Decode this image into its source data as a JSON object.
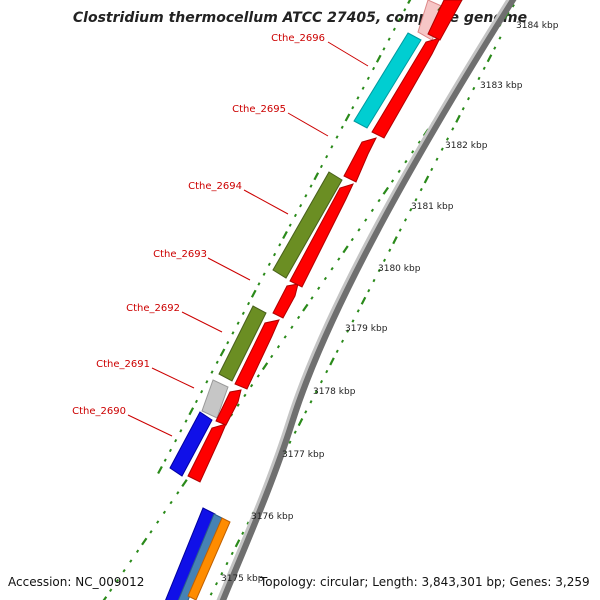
{
  "title": "Clostridium thermocellum ATCC 27405, complete genome",
  "accession": "Accession: NC_009012",
  "topology": "Topology: circular; Length: 3,843,301 bp; Genes: 3,259",
  "colors": {
    "label": "#cc0000",
    "tick": "#2a8a1a",
    "backbone_dark": "#6f6f6f",
    "backbone_light": "#bdbdbd",
    "forward_gene": "#ff0000",
    "reverse_blue": "#0000ee",
    "reverse_gray": "#c8c8c8",
    "reverse_olive": "#6b8e23",
    "reverse_cyan": "#00d0d8",
    "reverse_pink": "#f6c6c6",
    "steelblue": "#4682b4",
    "orange": "#ff8c00"
  },
  "gene_labels": [
    "Cthe_2690",
    "Cthe_2691",
    "Cthe_2692",
    "Cthe_2693",
    "Cthe_2694",
    "Cthe_2695",
    "Cthe_2696"
  ],
  "scale_labels": [
    "3175 kbp",
    "3176 kbp",
    "3177 kbp",
    "3178 kbp",
    "3179 kbp",
    "3180 kbp",
    "3181 kbp",
    "3182 kbp",
    "3183 kbp",
    "3184 kbp"
  ]
}
